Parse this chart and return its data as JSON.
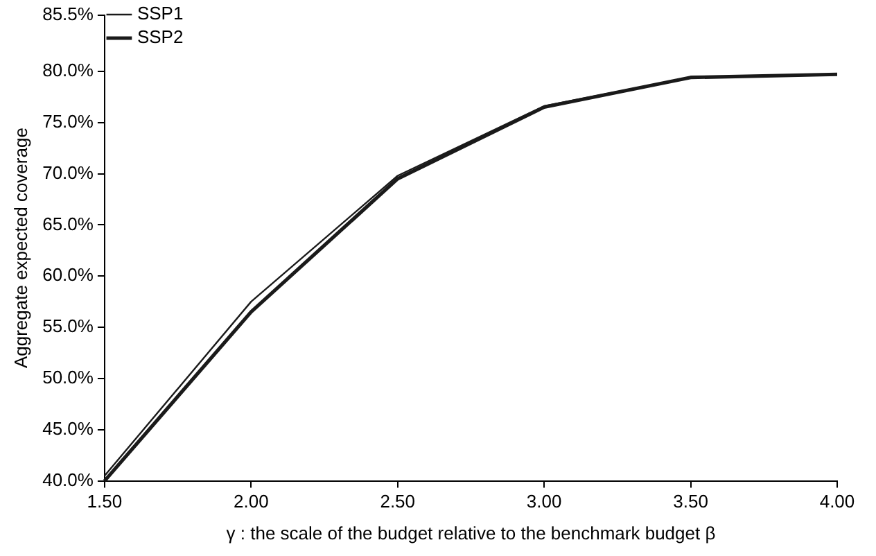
{
  "chart_data": {
    "type": "line",
    "xlabel": "γ : the scale of the budget relative to the benchmark budget β",
    "ylabel": "Aggregate expected coverage",
    "x": [
      1.5,
      2.0,
      2.5,
      3.0,
      3.5,
      4.0
    ],
    "series": [
      {
        "name": "SSP1",
        "color": "#1a1a1a",
        "values": [
          40.5,
          57.5,
          69.8,
          76.6,
          79.4,
          79.7
        ]
      },
      {
        "name": "SSP2",
        "color": "#1a1a1a",
        "values": [
          40.0,
          56.5,
          69.5,
          76.5,
          79.4,
          79.7
        ]
      }
    ],
    "xlim": [
      1.5,
      4.0
    ],
    "xticks": [
      {
        "value": 1.5,
        "label": "1.50"
      },
      {
        "value": 2.0,
        "label": "2.00"
      },
      {
        "value": 2.5,
        "label": "2.50"
      },
      {
        "value": 3.0,
        "label": "3.00"
      },
      {
        "value": 3.5,
        "label": "3.50"
      },
      {
        "value": 4.0,
        "label": "4.00"
      }
    ],
    "ylim": [
      40,
      85.5
    ],
    "yticks": [
      {
        "value": 40,
        "label": "40.0%"
      },
      {
        "value": 45,
        "label": "45.0%"
      },
      {
        "value": 50,
        "label": "50.0%"
      },
      {
        "value": 55,
        "label": "55.0%"
      },
      {
        "value": 60,
        "label": "60.0%"
      },
      {
        "value": 65,
        "label": "65.0%"
      },
      {
        "value": 70,
        "label": "70.0%"
      },
      {
        "value": 75,
        "label": "75.0%"
      },
      {
        "value": 80,
        "label": "80.0%"
      },
      {
        "value": 85.5,
        "label": "85.5%"
      }
    ],
    "grid": false,
    "legend": "top left",
    "marker": "none",
    "line_style": "solid"
  }
}
